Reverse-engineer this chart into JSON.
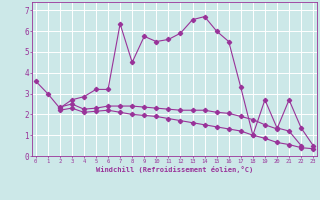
{
  "xlabel": "Windchill (Refroidissement éolien,°C)",
  "background_color": "#cce8e8",
  "grid_color": "#ffffff",
  "line_color": "#993399",
  "x_ticks": [
    0,
    1,
    2,
    3,
    4,
    5,
    6,
    7,
    8,
    9,
    10,
    11,
    12,
    13,
    14,
    15,
    16,
    17,
    18,
    19,
    20,
    21,
    22,
    23
  ],
  "y_ticks": [
    0,
    1,
    2,
    3,
    4,
    5,
    6,
    7
  ],
  "xlim": [
    -0.3,
    23.3
  ],
  "ylim": [
    0,
    7.4
  ],
  "series1_x": [
    0,
    1,
    2,
    3,
    4,
    5,
    6,
    7,
    8,
    9,
    10,
    11,
    12,
    13,
    14,
    15,
    16,
    17,
    18,
    19,
    20,
    21,
    22
  ],
  "series1_y": [
    3.6,
    3.0,
    2.3,
    2.7,
    2.85,
    3.2,
    3.2,
    6.35,
    4.5,
    5.75,
    5.5,
    5.6,
    5.9,
    6.55,
    6.7,
    6.0,
    5.5,
    3.3,
    1.0,
    2.7,
    1.35,
    1.2,
    0.5
  ],
  "series2_x": [
    2,
    3,
    4,
    5,
    6,
    7,
    8,
    9,
    10,
    11,
    12,
    13,
    14,
    15,
    16,
    17,
    18,
    19,
    20,
    21,
    22,
    23
  ],
  "series2_y": [
    2.35,
    2.5,
    2.25,
    2.3,
    2.4,
    2.4,
    2.4,
    2.35,
    2.3,
    2.25,
    2.2,
    2.2,
    2.2,
    2.1,
    2.05,
    1.9,
    1.75,
    1.5,
    1.3,
    2.7,
    1.35,
    0.5
  ],
  "series3_x": [
    2,
    3,
    4,
    5,
    6,
    7,
    8,
    9,
    10,
    11,
    12,
    13,
    14,
    15,
    16,
    17,
    18,
    19,
    20,
    21,
    22,
    23
  ],
  "series3_y": [
    2.2,
    2.3,
    2.1,
    2.15,
    2.2,
    2.1,
    2.0,
    1.95,
    1.9,
    1.8,
    1.7,
    1.6,
    1.5,
    1.4,
    1.3,
    1.2,
    1.0,
    0.85,
    0.65,
    0.55,
    0.4,
    0.35
  ]
}
